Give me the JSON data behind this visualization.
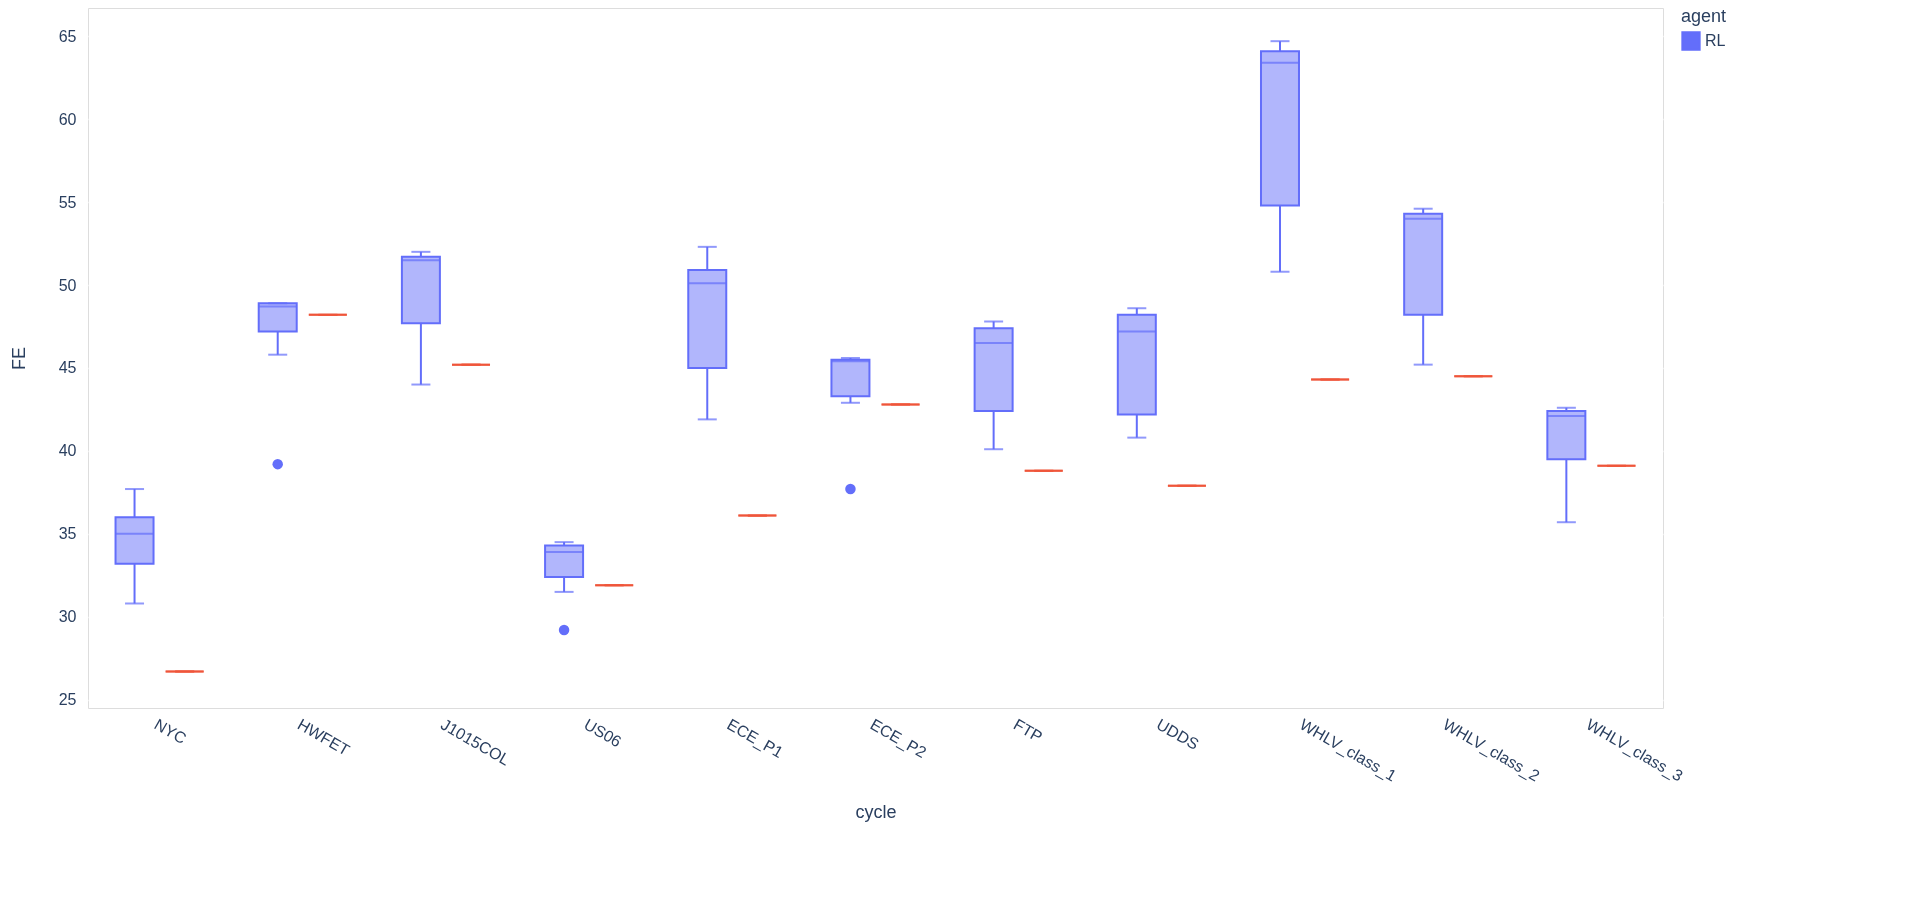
{
  "chart_data": {
    "type": "box",
    "xlabel": "cycle",
    "ylabel": "FE",
    "legend_title": "agent",
    "legend": "top right",
    "grid": "y",
    "categories": [
      "NYC",
      "HWFET",
      "J1015COL",
      "US06",
      "ECE_P1",
      "ECE_P2",
      "FTP",
      "UDDS",
      "WHLV_class_1",
      "WHLV_class_2",
      "WHLV_class_3"
    ],
    "ylim": [
      24.5,
      66.7
    ],
    "yticks": [
      25,
      30,
      35,
      40,
      45,
      50,
      55,
      60,
      65
    ],
    "series": [
      {
        "name": "RL",
        "color": "#636efa",
        "boxes": [
          {
            "low": 30.8,
            "q1": 33.2,
            "median": 35.0,
            "q3": 36.0,
            "high": 37.7
          },
          {
            "low": 45.8,
            "q1": 47.2,
            "median": 48.7,
            "q3": 48.9,
            "high": 48.9,
            "outliers": [
              39.2
            ]
          },
          {
            "low": 44.0,
            "q1": 47.7,
            "median": 51.5,
            "q3": 51.7,
            "high": 52.0
          },
          {
            "low": 31.5,
            "q1": 32.4,
            "median": 33.9,
            "q3": 34.3,
            "high": 34.5,
            "outliers": [
              29.2
            ]
          },
          {
            "low": 41.9,
            "q1": 45.0,
            "median": 50.1,
            "q3": 50.9,
            "high": 52.3
          },
          {
            "low": 42.9,
            "q1": 43.3,
            "median": 45.4,
            "q3": 45.5,
            "high": 45.6,
            "outliers": [
              37.7
            ]
          },
          {
            "low": 40.1,
            "q1": 42.4,
            "median": 46.5,
            "q3": 47.4,
            "high": 47.8
          },
          {
            "low": 40.8,
            "q1": 42.2,
            "median": 47.2,
            "q3": 48.2,
            "high": 48.6
          },
          {
            "low": 50.8,
            "q1": 54.8,
            "median": 63.4,
            "q3": 64.1,
            "high": 64.7
          },
          {
            "low": 45.2,
            "q1": 48.2,
            "median": 54.0,
            "q3": 54.3,
            "high": 54.6
          },
          {
            "low": 35.7,
            "q1": 39.5,
            "median": 42.1,
            "q3": 42.4,
            "high": 42.6
          }
        ]
      },
      {
        "color": "#ef553b",
        "boxes": [
          {
            "low": 26.7,
            "q1": 26.7,
            "median": 26.7,
            "q3": 26.7,
            "high": 26.7
          },
          {
            "low": 48.2,
            "q1": 48.2,
            "median": 48.2,
            "q3": 48.2,
            "high": 48.2
          },
          {
            "low": 45.2,
            "q1": 45.2,
            "median": 45.2,
            "q3": 45.2,
            "high": 45.2
          },
          {
            "low": 31.9,
            "q1": 31.9,
            "median": 31.9,
            "q3": 31.9,
            "high": 31.9
          },
          {
            "low": 36.1,
            "q1": 36.1,
            "median": 36.1,
            "q3": 36.1,
            "high": 36.1
          },
          {
            "low": 42.8,
            "q1": 42.8,
            "median": 42.8,
            "q3": 42.8,
            "high": 42.8
          },
          {
            "low": 38.8,
            "q1": 38.8,
            "median": 38.8,
            "q3": 38.8,
            "high": 38.8
          },
          {
            "low": 37.9,
            "q1": 37.9,
            "median": 37.9,
            "q3": 37.9,
            "high": 37.9
          },
          {
            "low": 44.3,
            "q1": 44.3,
            "median": 44.3,
            "q3": 44.3,
            "high": 44.3
          },
          {
            "low": 44.5,
            "q1": 44.5,
            "median": 44.5,
            "q3": 44.5,
            "high": 44.5
          },
          {
            "low": 39.1,
            "q1": 39.1,
            "median": 39.1,
            "q3": 39.1,
            "high": 39.1
          }
        ]
      }
    ]
  }
}
